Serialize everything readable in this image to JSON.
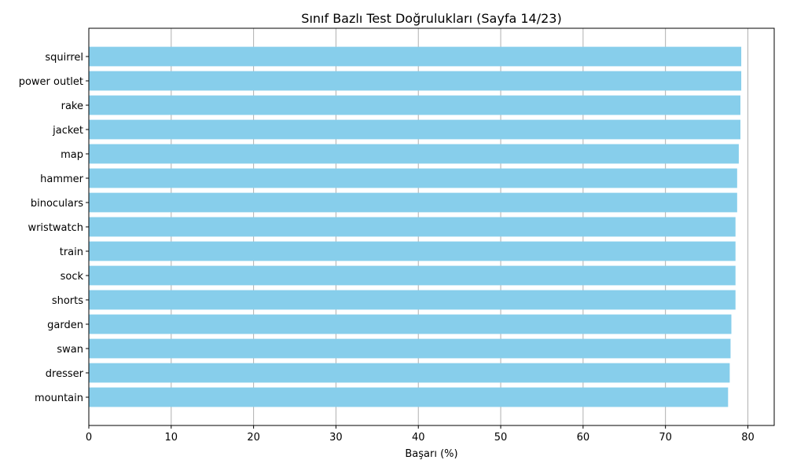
{
  "chart_data": {
    "type": "bar",
    "orientation": "horizontal",
    "title": "Sınıf Bazlı Test Doğrulukları (Sayfa 14/23)",
    "xlabel": "Başarı (%)",
    "ylabel": "",
    "xlim": [
      0,
      83.2
    ],
    "xticks": [
      0,
      10,
      20,
      30,
      40,
      50,
      60,
      70,
      80
    ],
    "grid": "x",
    "bar_color": "#87CEEB",
    "categories": [
      "squirrel",
      "power outlet",
      "rake",
      "jacket",
      "map",
      "hammer",
      "binoculars",
      "wristwatch",
      "train",
      "sock",
      "shorts",
      "garden",
      "swan",
      "dresser",
      "mountain"
    ],
    "values": [
      79.2,
      79.2,
      79.1,
      79.1,
      78.9,
      78.7,
      78.7,
      78.5,
      78.5,
      78.5,
      78.5,
      78.0,
      77.9,
      77.8,
      77.6
    ]
  }
}
